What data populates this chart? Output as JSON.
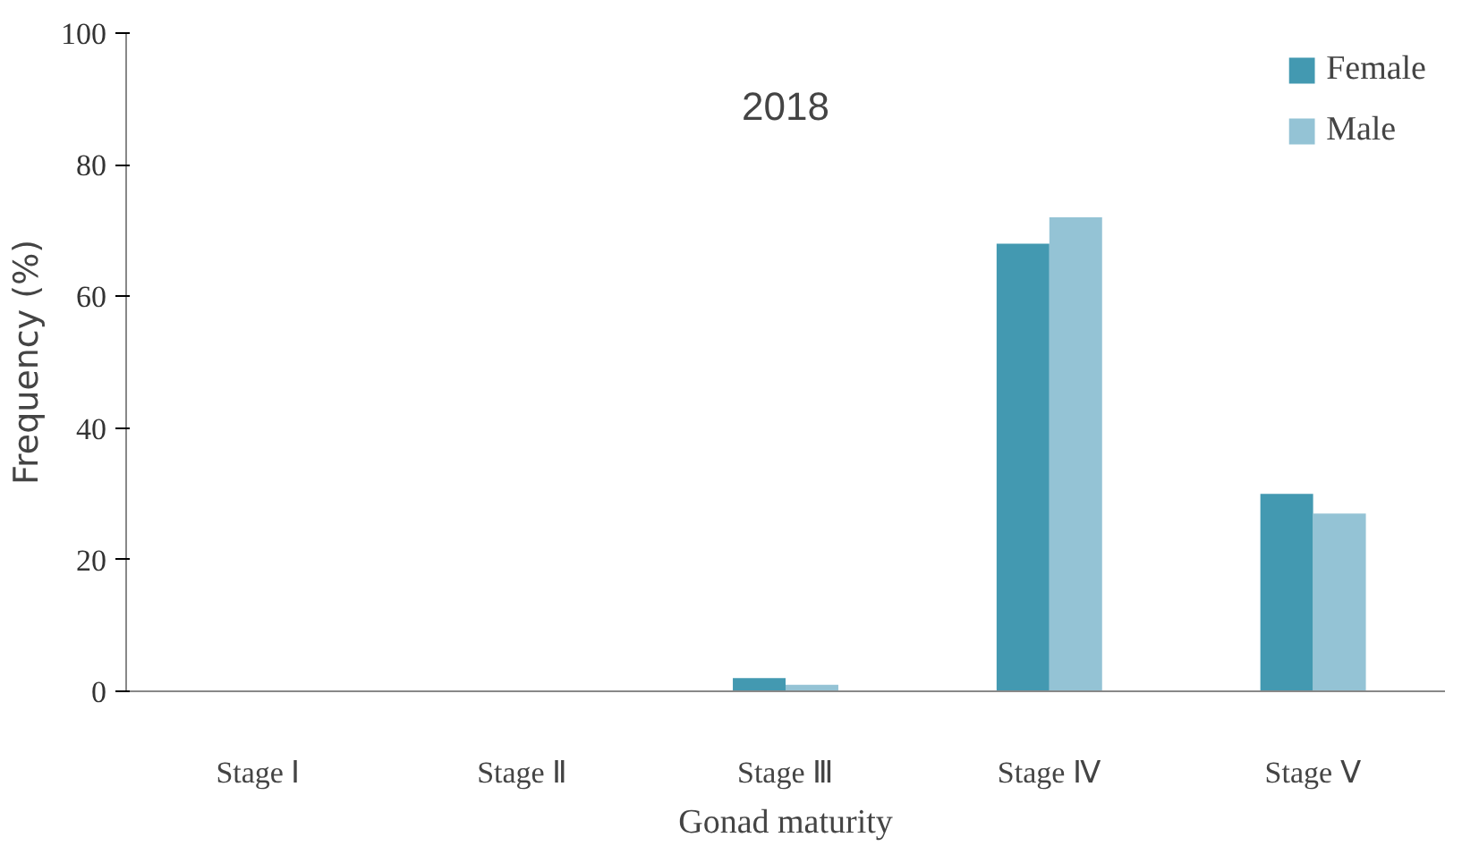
{
  "chart_data": {
    "type": "bar",
    "title": "2018",
    "xlabel": "Gonad maturity",
    "ylabel": "Frequency (%)",
    "categories": [
      "Stage Ⅰ",
      "Stage Ⅱ",
      "Stage Ⅲ",
      "Stage Ⅳ",
      "Stage Ⅴ"
    ],
    "series": [
      {
        "name": "Female",
        "color": "#4399b1",
        "values": [
          0,
          0,
          2,
          68,
          30
        ]
      },
      {
        "name": "Male",
        "color": "#94c3d5",
        "values": [
          0,
          0,
          1,
          72,
          27
        ]
      }
    ],
    "ylim": [
      0,
      100
    ],
    "yticks": [
      0,
      20,
      40,
      60,
      80,
      100
    ],
    "grid": false,
    "legend": "top right"
  }
}
